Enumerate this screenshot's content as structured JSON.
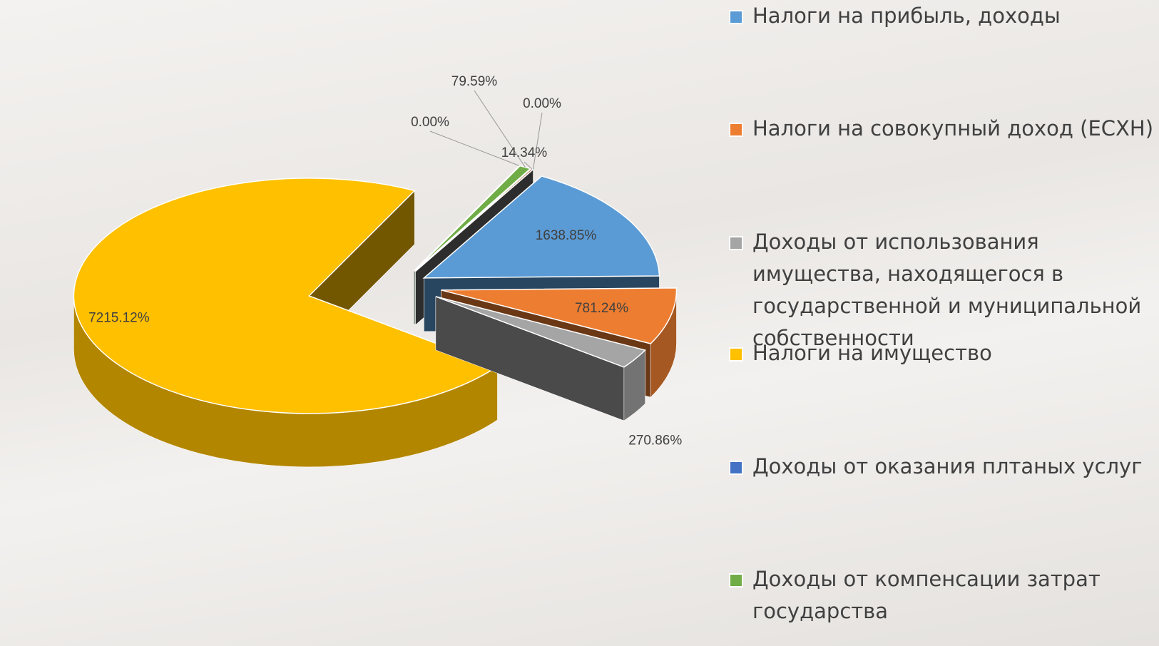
{
  "chart_data": {
    "type": "pie3d",
    "categories": [
      "Налоги на прибыль, доходы",
      "Налоги на совокупный доход (ЕСХН)",
      "Доходы от использования имущества, находящегося в государственной и муниципальной собственности",
      "Налоги на имущество",
      "Доходы от оказания плтаных услуг",
      "Доходы от компенсации затрат государства",
      null,
      null
    ],
    "values": [
      1638.85,
      781.24,
      270.86,
      7215.12,
      0.0,
      79.59,
      14.34,
      0.0
    ],
    "value_labels": [
      "1638.85%",
      "781.24%",
      "270.86%",
      "7215.12%",
      "0.00%",
      "79.59%",
      "14.34%",
      "0.00%"
    ],
    "colors": [
      "#5b9bd5",
      "#ed7d31",
      "#a5a5a5",
      "#ffc000",
      "#4472c4",
      "#70ad47",
      "#9e480e",
      "#636363"
    ],
    "legend": "right"
  }
}
